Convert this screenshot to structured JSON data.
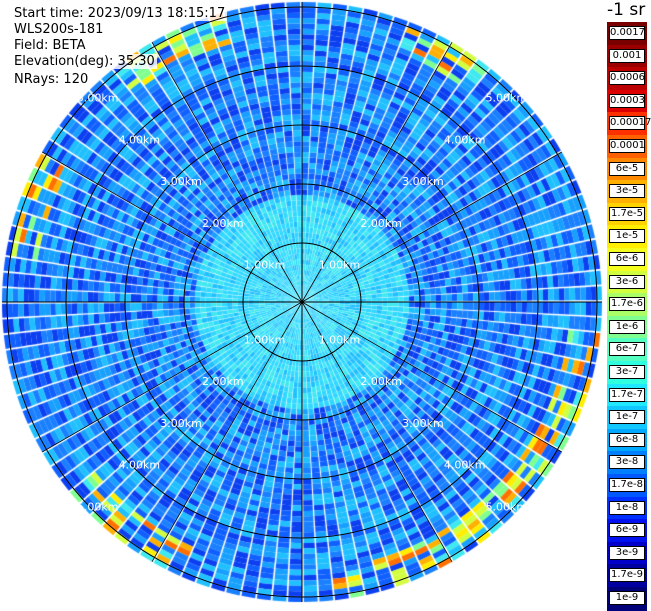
{
  "info": {
    "start_time": "Start time: 2023/09/13 18:15:17",
    "instrument": "WLS200s-181",
    "field": "Field: BETA",
    "elevation": "Elevation(deg): 35.30",
    "nrays": "NRays: 120"
  },
  "range_rings": {
    "labels": [
      "1.00km",
      "2.00km",
      "3.00km",
      "4.00km",
      "5.00km"
    ]
  },
  "colorbar": {
    "unit": "-1 sr",
    "labels": [
      "0.0017",
      "0.001",
      "0.0006",
      "0.0003",
      "0.00017",
      "0.0001",
      "6e-5",
      "3e-5",
      "1.7e-5",
      "1e-5",
      "6e-6",
      "3e-6",
      "1.7e-6",
      "1e-6",
      "6e-7",
      "3e-7",
      "1.7e-7",
      "1e-7",
      "6e-8",
      "3e-8",
      "1.7e-8",
      "1e-8",
      "6e-9",
      "3e-9",
      "1.7e-9",
      "1e-9"
    ],
    "colors": [
      "#7a0000",
      "#9a0000",
      "#bb0000",
      "#dd0000",
      "#ff3000",
      "#ff6000",
      "#ff8800",
      "#ffb000",
      "#ffd200",
      "#ffee00",
      "#f4ff20",
      "#d2ff40",
      "#aaff66",
      "#80ff90",
      "#55ffc0",
      "#30ffe0",
      "#20e8ff",
      "#10c8ff",
      "#00a8ff",
      "#0080ff",
      "#0058ff",
      "#0030ff",
      "#0010ee",
      "#0000c8",
      "#0000a0",
      "#000078"
    ]
  }
}
